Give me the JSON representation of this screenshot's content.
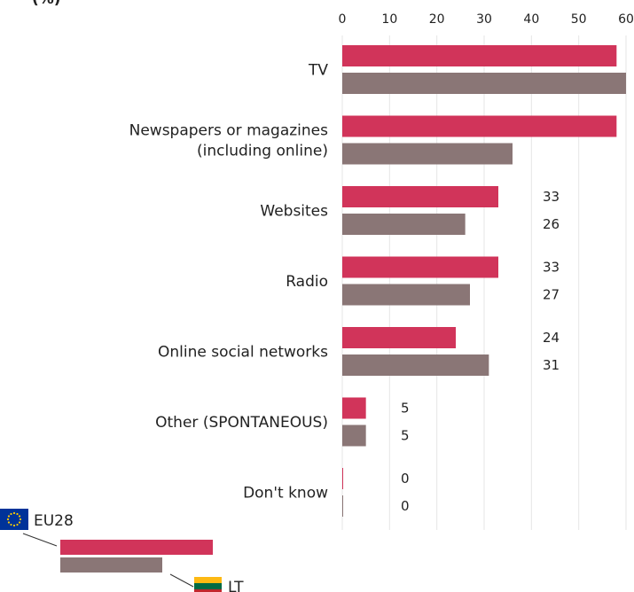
{
  "chart_data": {
    "type": "bar",
    "orientation": "horizontal",
    "title": "(%)",
    "categories": [
      [
        "TV"
      ],
      [
        "Newspapers or magazines",
        "(including online)"
      ],
      [
        "Websites"
      ],
      [
        "Radio"
      ],
      [
        "Online social networks"
      ],
      [
        "Other (SPONTANEOUS)"
      ],
      [
        "Don't know"
      ]
    ],
    "series": [
      {
        "name": "EU28",
        "color": "#d1345a",
        "values": [
          58,
          58,
          33,
          33,
          24,
          5,
          0
        ],
        "data_labels": [
          "",
          "",
          "33",
          "33",
          "24",
          "5",
          "0"
        ]
      },
      {
        "name": "LT",
        "color": "#8a7676",
        "values": [
          60,
          36,
          26,
          27,
          31,
          5,
          0
        ],
        "data_labels": [
          "",
          "",
          "26",
          "27",
          "31",
          "5",
          "0"
        ]
      }
    ],
    "xlim": [
      0,
      60
    ],
    "ticks": [
      "0",
      "10",
      "20",
      "30",
      "40",
      "50",
      "60"
    ],
    "grid": true,
    "legend_position": "bottom-left",
    "xlabel": "",
    "ylabel": ""
  },
  "legend_icons": {
    "EU28": "eu-flag-icon",
    "LT": "lithuania-flag-icon"
  }
}
